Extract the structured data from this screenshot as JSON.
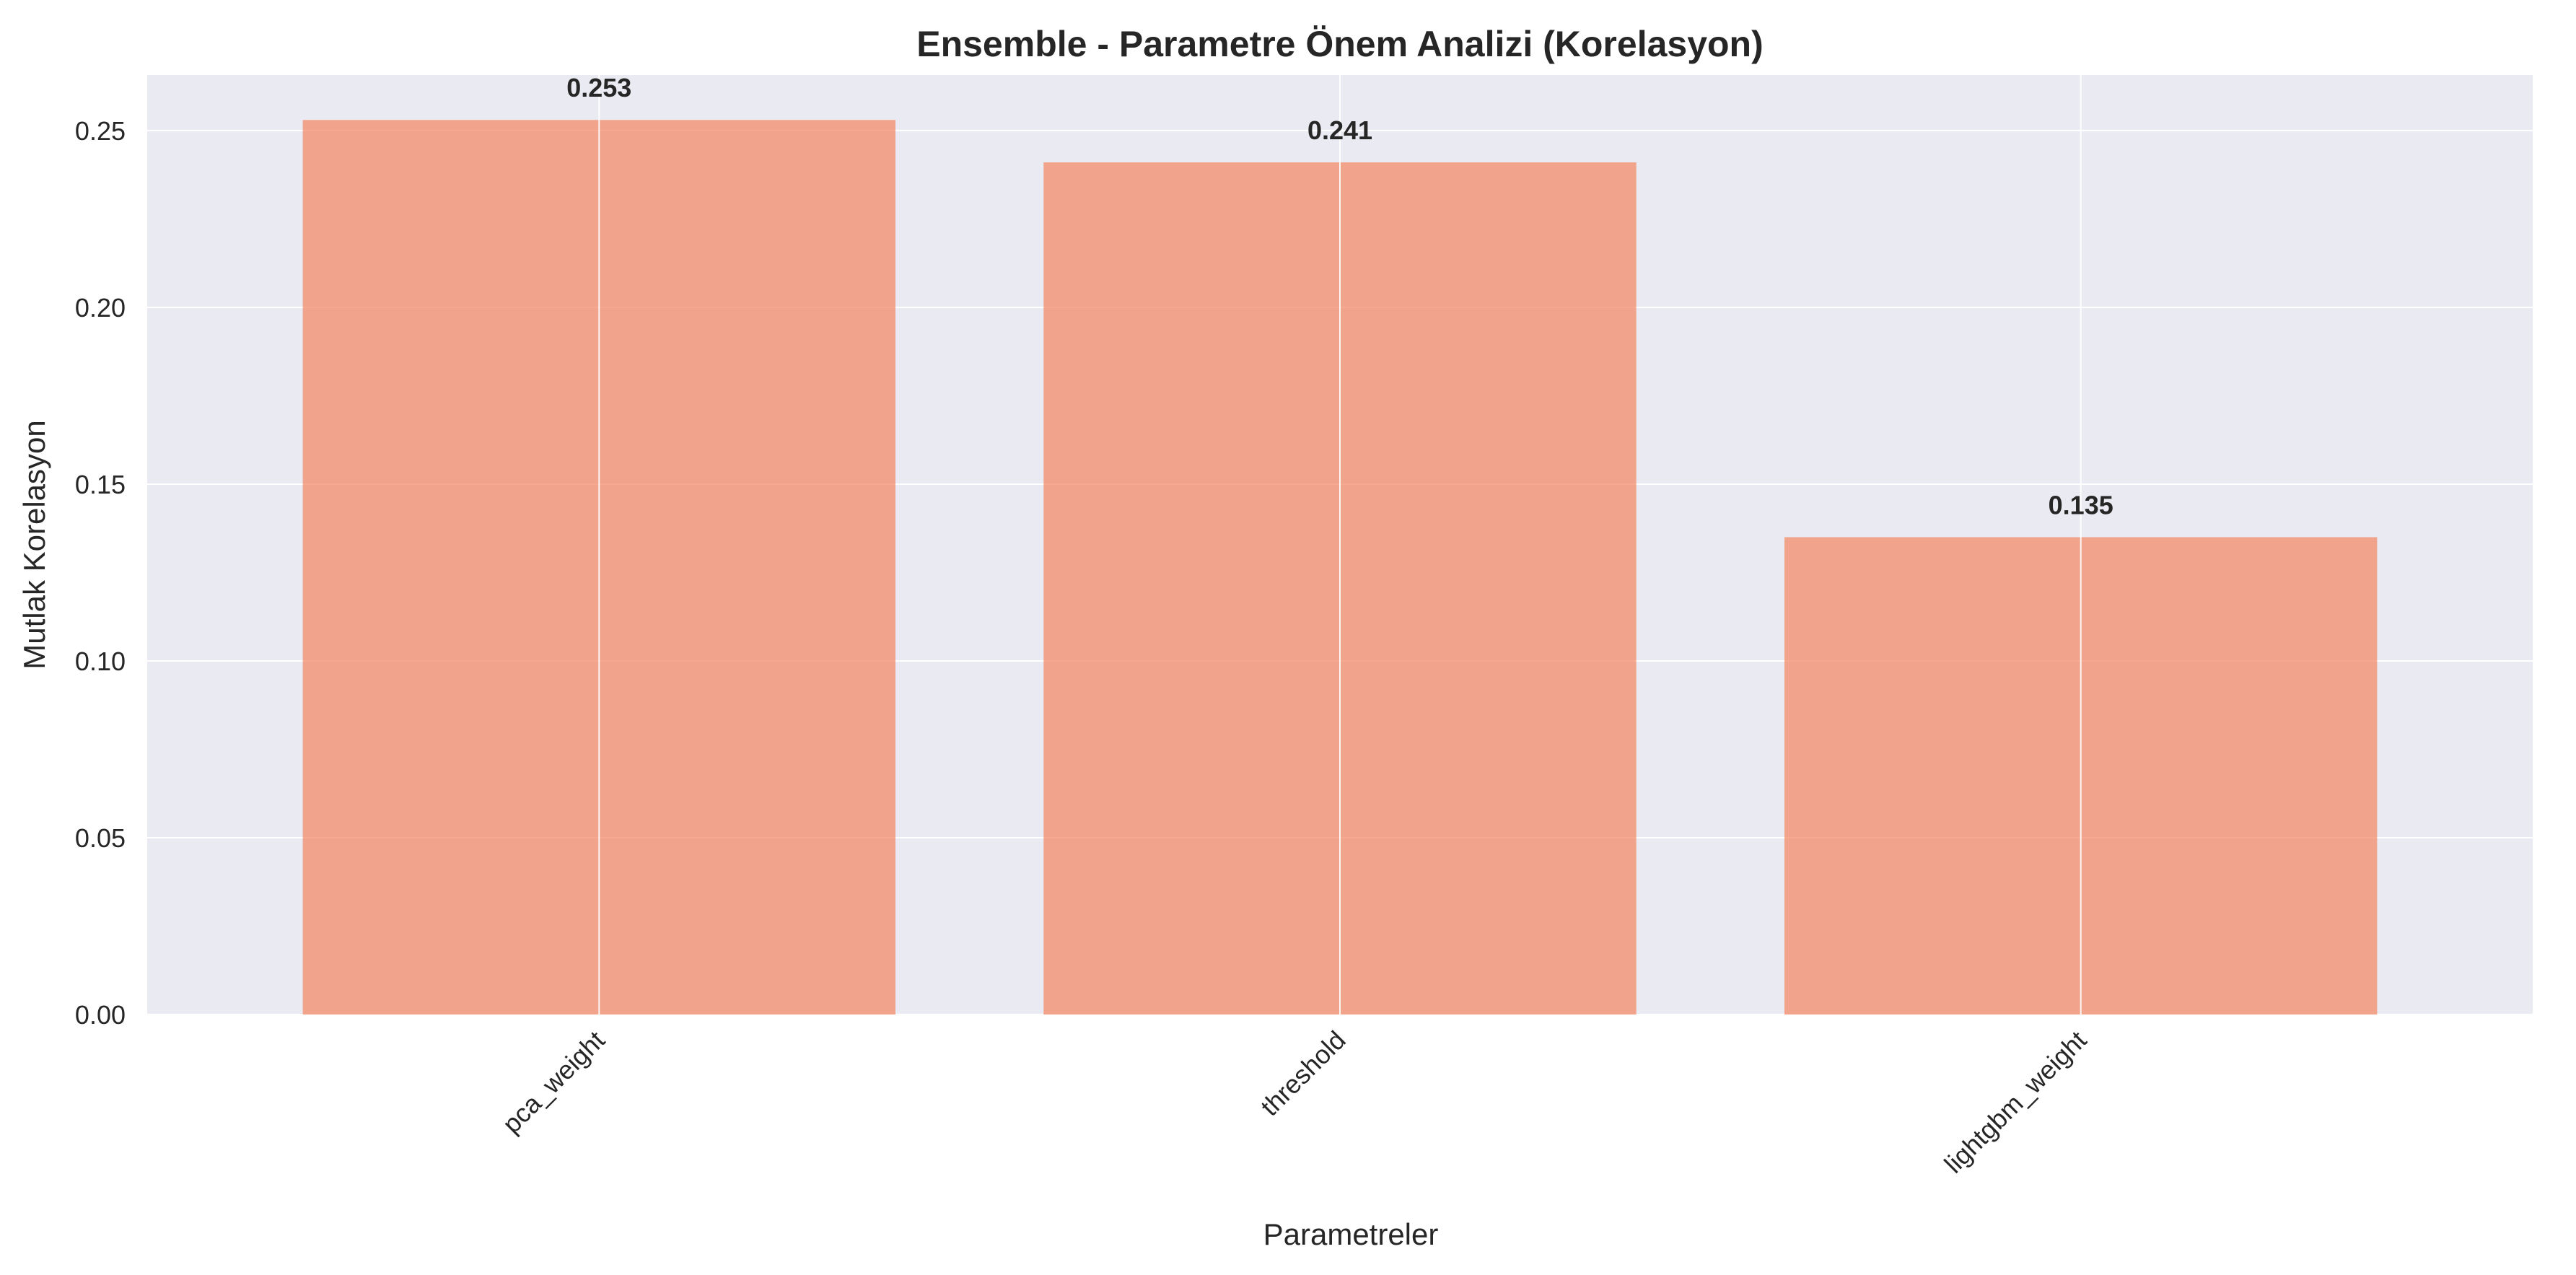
{
  "chart_data": {
    "type": "bar",
    "title": "Ensemble - Parametre Önem Analizi (Korelasyon)",
    "xlabel": "Parametreler",
    "ylabel": "Mutlak Korelasyon",
    "categories": [
      "pca_weight",
      "threshold",
      "lightgbm_weight"
    ],
    "values": [
      0.253,
      0.241,
      0.135
    ],
    "value_labels": [
      "0.253",
      "0.241",
      "0.135"
    ],
    "yticks": [
      0.0,
      0.05,
      0.1,
      0.15,
      0.2,
      0.25
    ],
    "ytick_labels": [
      "0.00",
      "0.05",
      "0.10",
      "0.15",
      "0.20",
      "0.25"
    ],
    "ylim": [
      0,
      0.2657
    ],
    "grid": true,
    "colors": {
      "bar": "#f4845f",
      "plot_background": "#eaeaf2",
      "grid": "#ffffff"
    }
  }
}
